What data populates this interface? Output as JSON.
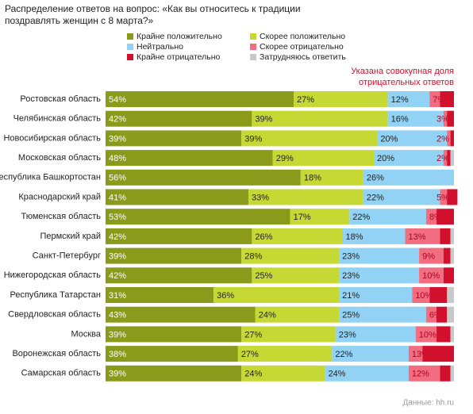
{
  "chart_data": {
    "type": "stacked_bar_h",
    "title": "Распределение ответов на вопрос: «Как вы относитесь к традиции поздравлять женщин с 8 марта?»",
    "annotation": [
      "Указана совокупная доля",
      "отрицательных ответов"
    ],
    "source": "Данные: hh.ru",
    "categories": [
      "Ростовская область",
      "Челябинская область",
      "Новосибирская область",
      "Московская область",
      "Республика Башкортостан",
      "Краснодарский край",
      "Тюменская область",
      "Пермский край",
      "Санкт-Петербург",
      "Нижегородская область",
      "Республика Татарстан",
      "Свердловская область",
      "Москва",
      "Воронежская область",
      "Самарская область"
    ],
    "xlim": [
      0,
      100
    ],
    "series": [
      {
        "name": "Крайне положительно",
        "color": "#8a9a1b",
        "values": [
          54,
          42,
          39,
          48,
          56,
          41,
          53,
          42,
          39,
          42,
          31,
          43,
          39,
          38,
          39
        ],
        "value_labels": [
          "54%",
          "42%",
          "39%",
          "48%",
          "56%",
          "41%",
          "53%",
          "42%",
          "39%",
          "42%",
          "31%",
          "43%",
          "39%",
          "38%",
          "39%"
        ]
      },
      {
        "name": "Скорее положительно",
        "color": "#c6d834",
        "values": [
          27,
          39,
          39,
          29,
          18,
          33,
          17,
          26,
          28,
          25,
          36,
          24,
          27,
          27,
          24
        ],
        "value_labels": [
          "27%",
          "39%",
          "39%",
          "29%",
          "18%",
          "33%",
          "17%",
          "26%",
          "28%",
          "25%",
          "36%",
          "24%",
          "27%",
          "27%",
          "24%"
        ]
      },
      {
        "name": "Нейтрально",
        "color": "#92d2f4",
        "values": [
          12,
          16,
          20,
          20,
          26,
          22,
          22,
          18,
          23,
          23,
          21,
          25,
          23,
          22,
          24
        ],
        "value_labels": [
          "12%",
          "16%",
          "20%",
          "20%",
          "26%",
          "22%",
          "22%",
          "18%",
          "23%",
          "23%",
          "21%",
          "25%",
          "23%",
          "22%",
          "24%"
        ]
      },
      {
        "name": "Скорее отрицательно",
        "color": "#f26d7f",
        "values": [
          3,
          1,
          1,
          1,
          0,
          2,
          3,
          10,
          7,
          7,
          5,
          3,
          6,
          4,
          9
        ]
      },
      {
        "name": "Крайне отрицательно",
        "color": "#d0102c",
        "values": [
          4,
          2,
          1,
          1,
          0,
          3,
          5,
          3,
          2,
          3,
          5,
          3,
          4,
          9,
          3
        ]
      },
      {
        "name": "Затрудняюсь ответить",
        "color": "#c8c8c8",
        "values": [
          0,
          0,
          0,
          1,
          0,
          0,
          0,
          1,
          1,
          0,
          2,
          2,
          1,
          0,
          1
        ]
      }
    ],
    "negative_total_labels": [
      "7%",
      "3%",
      "2%",
      "2%",
      null,
      "5%",
      "8%",
      "13%",
      "9%",
      "10%",
      "10%",
      "6%",
      "10%",
      "13%",
      "12%"
    ]
  }
}
